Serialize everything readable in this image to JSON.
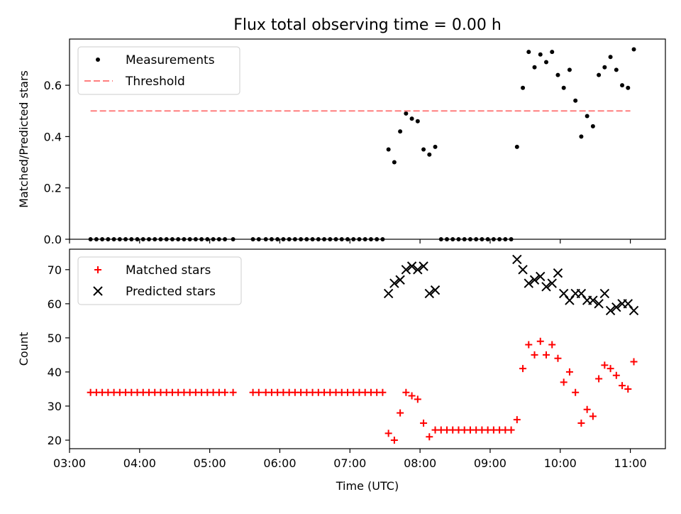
{
  "title": "Flux total observing time = 0.00 h",
  "colors": {
    "measurement": "#000000",
    "threshold": "#ff7f7f",
    "matched": "#ff0000",
    "predicted": "#000000"
  },
  "chart_data": [
    {
      "type": "scatter",
      "panel": "top",
      "title": "Flux total observing time = 0.00 h",
      "ylabel": "Matched/Predicted stars",
      "xlabel": "",
      "xlim": [
        "03:00",
        "11:30"
      ],
      "ylim": [
        0,
        0.78
      ],
      "yticks": [
        "0.0",
        "0.2",
        "0.4",
        "0.6"
      ],
      "legend": "top-left",
      "series": [
        {
          "name": "Measurements",
          "marker": "dot",
          "points": [
            [
              "03:18",
              0
            ],
            [
              "03:23",
              0
            ],
            [
              "03:28",
              0
            ],
            [
              "03:33",
              0
            ],
            [
              "03:38",
              0
            ],
            [
              "03:43",
              0
            ],
            [
              "03:48",
              0
            ],
            [
              "03:53",
              0
            ],
            [
              "03:58",
              0
            ],
            [
              "04:03",
              0
            ],
            [
              "04:08",
              0
            ],
            [
              "04:13",
              0
            ],
            [
              "04:18",
              0
            ],
            [
              "04:23",
              0
            ],
            [
              "04:28",
              0
            ],
            [
              "04:33",
              0
            ],
            [
              "04:38",
              0
            ],
            [
              "04:43",
              0
            ],
            [
              "04:48",
              0
            ],
            [
              "04:53",
              0
            ],
            [
              "04:58",
              0
            ],
            [
              "05:03",
              0
            ],
            [
              "05:08",
              0
            ],
            [
              "05:13",
              0
            ],
            [
              "05:20",
              0
            ],
            [
              "05:37",
              0
            ],
            [
              "05:42",
              0
            ],
            [
              "05:48",
              0
            ],
            [
              "05:53",
              0
            ],
            [
              "05:58",
              0
            ],
            [
              "06:03",
              0
            ],
            [
              "06:08",
              0
            ],
            [
              "06:13",
              0
            ],
            [
              "06:18",
              0
            ],
            [
              "06:23",
              0
            ],
            [
              "06:28",
              0
            ],
            [
              "06:33",
              0
            ],
            [
              "06:38",
              0
            ],
            [
              "06:43",
              0
            ],
            [
              "06:48",
              0
            ],
            [
              "06:53",
              0
            ],
            [
              "06:58",
              0
            ],
            [
              "07:03",
              0
            ],
            [
              "07:08",
              0
            ],
            [
              "07:13",
              0
            ],
            [
              "07:18",
              0
            ],
            [
              "07:23",
              0
            ],
            [
              "07:28",
              0
            ],
            [
              "07:33",
              0.35
            ],
            [
              "07:38",
              0.3
            ],
            [
              "07:43",
              0.42
            ],
            [
              "07:48",
              0.49
            ],
            [
              "07:53",
              0.47
            ],
            [
              "07:58",
              0.46
            ],
            [
              "08:03",
              0.35
            ],
            [
              "08:08",
              0.33
            ],
            [
              "08:13",
              0.36
            ],
            [
              "08:18",
              0
            ],
            [
              "08:23",
              0
            ],
            [
              "08:28",
              0
            ],
            [
              "08:33",
              0
            ],
            [
              "08:38",
              0
            ],
            [
              "08:43",
              0
            ],
            [
              "08:48",
              0
            ],
            [
              "08:53",
              0
            ],
            [
              "08:58",
              0
            ],
            [
              "09:03",
              0
            ],
            [
              "09:08",
              0
            ],
            [
              "09:13",
              0
            ],
            [
              "09:18",
              0
            ],
            [
              "09:23",
              0.36
            ],
            [
              "09:28",
              0.59
            ],
            [
              "09:33",
              0.73
            ],
            [
              "09:38",
              0.67
            ],
            [
              "09:43",
              0.72
            ],
            [
              "09:48",
              0.69
            ],
            [
              "09:53",
              0.73
            ],
            [
              "09:58",
              0.64
            ],
            [
              "10:03",
              0.59
            ],
            [
              "10:08",
              0.66
            ],
            [
              "10:13",
              0.54
            ],
            [
              "10:18",
              0.4
            ],
            [
              "10:23",
              0.48
            ],
            [
              "10:28",
              0.44
            ],
            [
              "10:33",
              0.64
            ],
            [
              "10:38",
              0.67
            ],
            [
              "10:43",
              0.71
            ],
            [
              "10:48",
              0.66
            ],
            [
              "10:53",
              0.6
            ],
            [
              "10:58",
              0.59
            ],
            [
              "11:03",
              0.74
            ]
          ]
        },
        {
          "name": "Threshold",
          "marker": "dashed-line",
          "points": [
            [
              "03:18",
              0.5
            ],
            [
              "11:00",
              0.5
            ]
          ]
        }
      ]
    },
    {
      "type": "scatter",
      "panel": "bottom",
      "title": "",
      "xlabel": "Time (UTC)",
      "ylabel": "Count",
      "xlim": [
        "03:00",
        "11:30"
      ],
      "ylim": [
        17.5,
        76
      ],
      "xticks": [
        "03:00",
        "04:00",
        "05:00",
        "06:00",
        "07:00",
        "08:00",
        "09:00",
        "10:00",
        "11:00"
      ],
      "yticks": [
        "20",
        "30",
        "40",
        "50",
        "60",
        "70"
      ],
      "legend": "top-left",
      "series": [
        {
          "name": "Matched stars",
          "marker": "plus",
          "points": [
            [
              "03:18",
              34
            ],
            [
              "03:23",
              34
            ],
            [
              "03:28",
              34
            ],
            [
              "03:33",
              34
            ],
            [
              "03:38",
              34
            ],
            [
              "03:43",
              34
            ],
            [
              "03:48",
              34
            ],
            [
              "03:53",
              34
            ],
            [
              "03:58",
              34
            ],
            [
              "04:03",
              34
            ],
            [
              "04:08",
              34
            ],
            [
              "04:13",
              34
            ],
            [
              "04:18",
              34
            ],
            [
              "04:23",
              34
            ],
            [
              "04:28",
              34
            ],
            [
              "04:33",
              34
            ],
            [
              "04:38",
              34
            ],
            [
              "04:43",
              34
            ],
            [
              "04:48",
              34
            ],
            [
              "04:53",
              34
            ],
            [
              "04:58",
              34
            ],
            [
              "05:03",
              34
            ],
            [
              "05:08",
              34
            ],
            [
              "05:13",
              34
            ],
            [
              "05:20",
              34
            ],
            [
              "05:37",
              34
            ],
            [
              "05:42",
              34
            ],
            [
              "05:48",
              34
            ],
            [
              "05:53",
              34
            ],
            [
              "05:58",
              34
            ],
            [
              "06:03",
              34
            ],
            [
              "06:08",
              34
            ],
            [
              "06:13",
              34
            ],
            [
              "06:18",
              34
            ],
            [
              "06:23",
              34
            ],
            [
              "06:28",
              34
            ],
            [
              "06:33",
              34
            ],
            [
              "06:38",
              34
            ],
            [
              "06:43",
              34
            ],
            [
              "06:48",
              34
            ],
            [
              "06:53",
              34
            ],
            [
              "06:58",
              34
            ],
            [
              "07:03",
              34
            ],
            [
              "07:08",
              34
            ],
            [
              "07:13",
              34
            ],
            [
              "07:18",
              34
            ],
            [
              "07:23",
              34
            ],
            [
              "07:28",
              34
            ],
            [
              "07:33",
              22
            ],
            [
              "07:38",
              20
            ],
            [
              "07:43",
              28
            ],
            [
              "07:48",
              34
            ],
            [
              "07:53",
              33
            ],
            [
              "07:58",
              32
            ],
            [
              "08:03",
              25
            ],
            [
              "08:08",
              21
            ],
            [
              "08:13",
              23
            ],
            [
              "08:18",
              23
            ],
            [
              "08:23",
              23
            ],
            [
              "08:28",
              23
            ],
            [
              "08:33",
              23
            ],
            [
              "08:38",
              23
            ],
            [
              "08:43",
              23
            ],
            [
              "08:48",
              23
            ],
            [
              "08:53",
              23
            ],
            [
              "08:58",
              23
            ],
            [
              "09:03",
              23
            ],
            [
              "09:08",
              23
            ],
            [
              "09:13",
              23
            ],
            [
              "09:18",
              23
            ],
            [
              "09:23",
              26
            ],
            [
              "09:28",
              41
            ],
            [
              "09:33",
              48
            ],
            [
              "09:38",
              45
            ],
            [
              "09:43",
              49
            ],
            [
              "09:48",
              45
            ],
            [
              "09:53",
              48
            ],
            [
              "09:58",
              44
            ],
            [
              "10:03",
              37
            ],
            [
              "10:08",
              40
            ],
            [
              "10:13",
              34
            ],
            [
              "10:18",
              25
            ],
            [
              "10:23",
              29
            ],
            [
              "10:28",
              27
            ],
            [
              "10:33",
              38
            ],
            [
              "10:38",
              42
            ],
            [
              "10:43",
              41
            ],
            [
              "10:48",
              39
            ],
            [
              "10:53",
              36
            ],
            [
              "10:58",
              35
            ],
            [
              "11:03",
              43
            ]
          ]
        },
        {
          "name": "Predicted stars",
          "marker": "x",
          "points": [
            [
              "07:33",
              63
            ],
            [
              "07:38",
              66
            ],
            [
              "07:43",
              67
            ],
            [
              "07:48",
              70
            ],
            [
              "07:53",
              71
            ],
            [
              "07:58",
              70
            ],
            [
              "08:03",
              71
            ],
            [
              "08:08",
              63
            ],
            [
              "08:13",
              64
            ],
            [
              "09:23",
              73
            ],
            [
              "09:28",
              70
            ],
            [
              "09:33",
              66
            ],
            [
              "09:38",
              67
            ],
            [
              "09:43",
              68
            ],
            [
              "09:48",
              65
            ],
            [
              "09:53",
              66
            ],
            [
              "09:58",
              69
            ],
            [
              "10:03",
              63
            ],
            [
              "10:08",
              61
            ],
            [
              "10:13",
              63
            ],
            [
              "10:18",
              63
            ],
            [
              "10:23",
              61
            ],
            [
              "10:28",
              61
            ],
            [
              "10:33",
              60
            ],
            [
              "10:38",
              63
            ],
            [
              "10:43",
              58
            ],
            [
              "10:48",
              59
            ],
            [
              "10:53",
              60
            ],
            [
              "10:58",
              60
            ],
            [
              "11:03",
              58
            ]
          ]
        }
      ]
    }
  ]
}
